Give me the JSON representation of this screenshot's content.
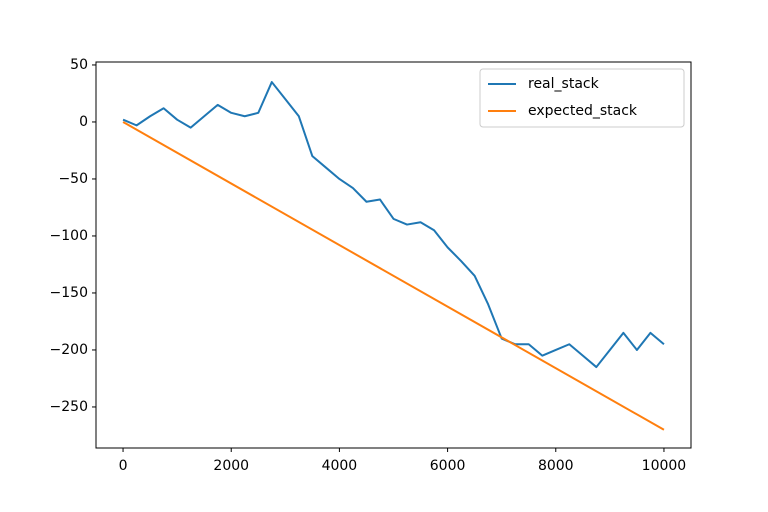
{
  "chart_data": {
    "type": "line",
    "series": [
      {
        "name": "real_stack",
        "color": "#1f77b4",
        "x": [
          0,
          250,
          500,
          750,
          1000,
          1250,
          1500,
          1750,
          2000,
          2250,
          2500,
          2750,
          3000,
          3250,
          3500,
          3750,
          4000,
          4250,
          4500,
          4750,
          5000,
          5250,
          5500,
          5750,
          6000,
          6250,
          6500,
          6750,
          7000,
          7250,
          7500,
          7750,
          8000,
          8250,
          8500,
          8750,
          9000,
          9250,
          9500,
          9750,
          10000
        ],
        "values": [
          2,
          -3,
          5,
          12,
          2,
          -5,
          5,
          15,
          8,
          5,
          8,
          35,
          20,
          5,
          -30,
          -40,
          -50,
          -58,
          -70,
          -68,
          -85,
          -90,
          -88,
          -95,
          -110,
          -122,
          -135,
          -160,
          -190,
          -195,
          -195,
          -205,
          -200,
          -195,
          -205,
          -215,
          -200,
          -185,
          -200,
          -185,
          -195
        ]
      },
      {
        "name": "expected_stack",
        "color": "#ff7f0e",
        "x": [
          0,
          10000
        ],
        "values": [
          0,
          -270
        ]
      }
    ],
    "xlim": [
      -500,
      10500
    ],
    "ylim": [
      -286,
      52.6
    ],
    "xticks": [
      0,
      2000,
      4000,
      6000,
      8000,
      10000
    ],
    "yticks": [
      {
        "value": -250,
        "label": "−250"
      },
      {
        "value": -200,
        "label": "−200"
      },
      {
        "value": -150,
        "label": "−150"
      },
      {
        "value": -100,
        "label": "−100"
      },
      {
        "value": -50,
        "label": "−50"
      },
      0,
      50
    ],
    "legend": "upper right",
    "grid": false
  }
}
